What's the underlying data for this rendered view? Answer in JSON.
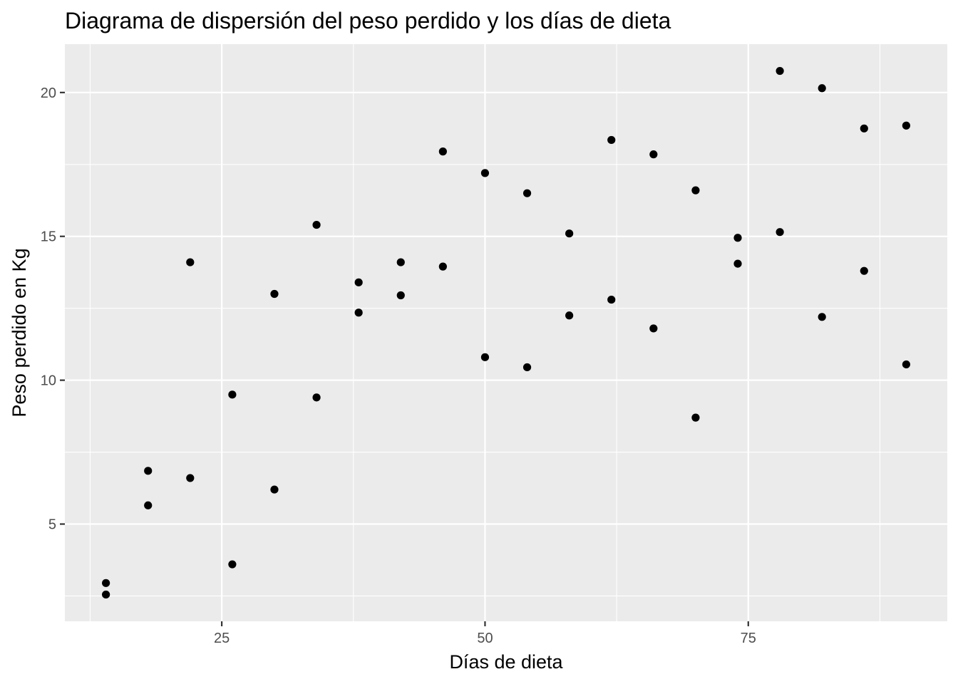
{
  "chart_data": {
    "type": "scatter",
    "title": "Diagrama de dispersión del peso perdido y los días de dieta",
    "xlabel": "Días de dieta",
    "ylabel": "Peso perdido en Kg",
    "xlim": [
      10.1,
      93.9
    ],
    "ylim": [
      1.62,
      21.68
    ],
    "x_ticks": [
      25,
      50,
      75
    ],
    "x_tick_labels": [
      "25",
      "50",
      "75"
    ],
    "x_minor_ticks": [
      12.5,
      37.5,
      62.5,
      87.5
    ],
    "y_ticks": [
      5,
      10,
      15,
      20
    ],
    "y_tick_labels": [
      "5",
      "10",
      "15",
      "20"
    ],
    "y_minor_ticks": [
      2.5,
      7.5,
      12.5,
      17.5
    ],
    "grid": true,
    "legend": "none",
    "panel_background": "#ebebeb",
    "grid_color": "#ffffff",
    "point_color": "#000000",
    "points": [
      {
        "x": 14,
        "y": 2.95
      },
      {
        "x": 14,
        "y": 2.55
      },
      {
        "x": 18,
        "y": 6.85
      },
      {
        "x": 18,
        "y": 5.65
      },
      {
        "x": 22,
        "y": 14.1
      },
      {
        "x": 22,
        "y": 6.6
      },
      {
        "x": 26,
        "y": 9.5
      },
      {
        "x": 26,
        "y": 3.6
      },
      {
        "x": 30,
        "y": 13.0
      },
      {
        "x": 30,
        "y": 6.2
      },
      {
        "x": 34,
        "y": 15.4
      },
      {
        "x": 34,
        "y": 9.4
      },
      {
        "x": 38,
        "y": 13.4
      },
      {
        "x": 38,
        "y": 12.35
      },
      {
        "x": 42,
        "y": 14.1
      },
      {
        "x": 42,
        "y": 12.95
      },
      {
        "x": 46,
        "y": 17.95
      },
      {
        "x": 46,
        "y": 13.95
      },
      {
        "x": 50,
        "y": 17.2
      },
      {
        "x": 50,
        "y": 10.8
      },
      {
        "x": 54,
        "y": 16.5
      },
      {
        "x": 54,
        "y": 10.45
      },
      {
        "x": 58,
        "y": 15.1
      },
      {
        "x": 58,
        "y": 12.25
      },
      {
        "x": 62,
        "y": 18.35
      },
      {
        "x": 62,
        "y": 12.8
      },
      {
        "x": 66,
        "y": 17.85
      },
      {
        "x": 66,
        "y": 11.8
      },
      {
        "x": 70,
        "y": 16.6
      },
      {
        "x": 70,
        "y": 8.7
      },
      {
        "x": 74,
        "y": 14.95
      },
      {
        "x": 74,
        "y": 14.05
      },
      {
        "x": 78,
        "y": 20.75
      },
      {
        "x": 78,
        "y": 15.15
      },
      {
        "x": 82,
        "y": 20.15
      },
      {
        "x": 82,
        "y": 12.2
      },
      {
        "x": 86,
        "y": 18.75
      },
      {
        "x": 86,
        "y": 13.8
      },
      {
        "x": 90,
        "y": 18.85
      },
      {
        "x": 90,
        "y": 10.55
      }
    ]
  }
}
